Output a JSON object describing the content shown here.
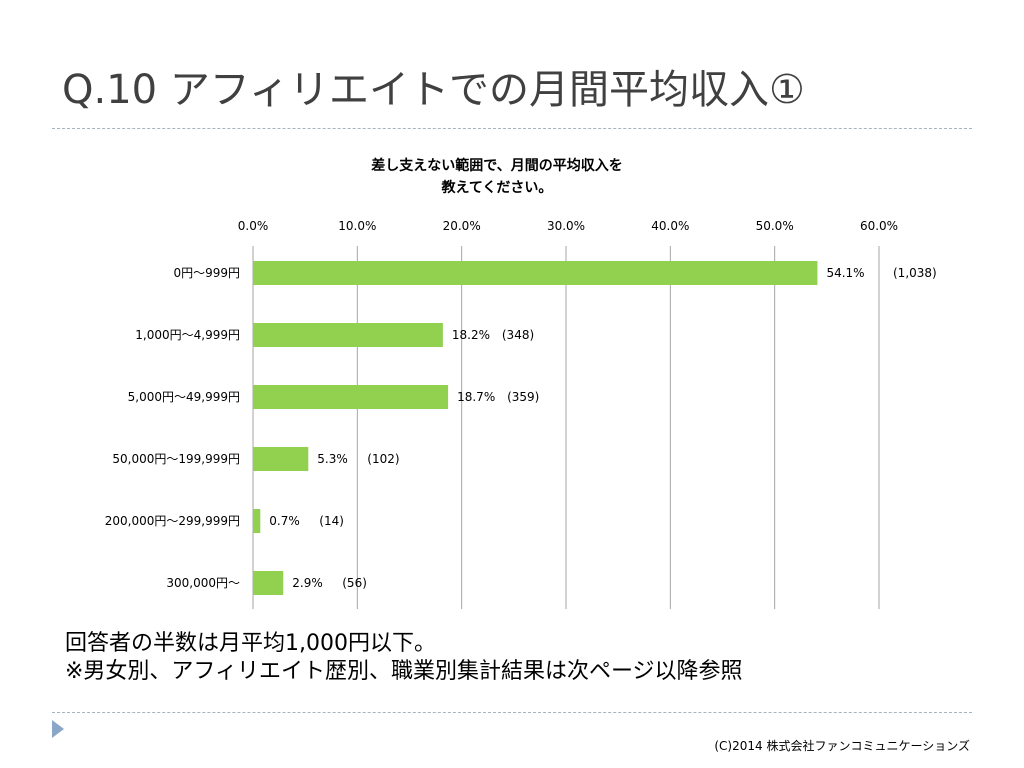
{
  "slide": {
    "title": "Q.10 アフィリエイトでの月間平均収入①",
    "notes": [
      "回答者の半数は月平均1,000円以下。",
      "※男女別、アフィリエイト歴別、職業別集計結果は次ページ以降参照"
    ],
    "copyright": "(C)2014 株式会社ファンコミュニケーションズ"
  },
  "chart_data": {
    "type": "bar",
    "orientation": "horizontal",
    "title_lines": [
      "差し支えない範囲で、月間の平均収入を",
      "教えてください。"
    ],
    "categories": [
      "0円～999円",
      "1,000円～4,999円",
      "5,000円～49,999円",
      "50,000円～199,999円",
      "200,000円～299,999円",
      "300,000円～"
    ],
    "values": [
      54.1,
      18.2,
      18.7,
      5.3,
      0.7,
      2.9
    ],
    "value_labels": [
      "54.1%",
      "18.2%",
      "18.7%",
      "5.3%",
      "0.7%",
      "2.9%"
    ],
    "counts": [
      "(1,038)",
      "(348)",
      "(359)",
      "(102)",
      "(14)",
      "(56)"
    ],
    "xlim": [
      0,
      60
    ],
    "ticks": [
      0,
      10,
      20,
      30,
      40,
      50,
      60
    ],
    "tick_labels": [
      "0.0%",
      "10.0%",
      "20.0%",
      "30.0%",
      "40.0%",
      "50.0%",
      "60.0%"
    ],
    "axis_position": "top",
    "grid": true,
    "legend": false,
    "bar_color": "#92d050",
    "grid_color": "#a6a6a6"
  }
}
